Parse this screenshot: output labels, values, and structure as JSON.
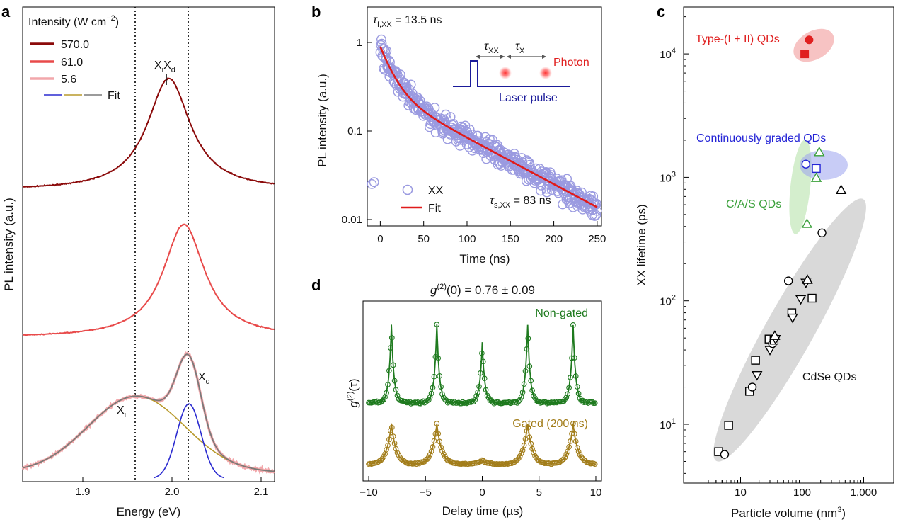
{
  "panels": {
    "a": {
      "label": "a",
      "legend_title": "Intensity (W cm",
      "legend_title_sup": "−2",
      "legend_title_end": ")",
      "legend": [
        "570.0",
        "61.0",
        "5.6",
        "Fit"
      ],
      "peak_label_main": "X",
      "peak_label_sub1": "i",
      "peak_label_mid": "X",
      "peak_label_sub2": "d",
      "xi_main": "X",
      "xi_sub": "i",
      "xd_main": "X",
      "xd_sub": "d",
      "xlabel": "Energy (eV)",
      "ylabel": "PL intensity (a.u.)",
      "xticks": [
        "1.9",
        "2.0",
        "2.1"
      ]
    },
    "b": {
      "label": "b",
      "tau_f_main": "τ",
      "tau_f_sub": "f,XX",
      "tau_f_val": " = 13.5 ns",
      "tau_s_main": "τ",
      "tau_s_sub": "s,XX",
      "tau_s_val": " = 83 ns",
      "inset_tau_xx_main": "τ",
      "inset_tau_xx_sub": "XX",
      "inset_tau_x_main": "τ",
      "inset_tau_x_sub": "X",
      "inset_photon": "Photon",
      "inset_laser": "Laser pulse",
      "legend": [
        "XX",
        "Fit"
      ],
      "xlabel": "Time (ns)",
      "ylabel": "PL intensity (a.u.)",
      "xticks": [
        "0",
        "50",
        "100",
        "150",
        "200",
        "250"
      ],
      "yticks": [
        "1",
        "0.1",
        "0.01"
      ]
    },
    "c": {
      "label": "c",
      "groups": [
        "Type-(I + II) QDs",
        "Continuously graded QDs",
        "C/A/S QDs",
        "CdSe QDs"
      ],
      "xlabel": "Particle volume (nm",
      "xlabel_sup": "3",
      "xlabel_end": ")",
      "ylabel": "XX lifetime (ps)",
      "xticks": [
        "10",
        "100",
        "1,000"
      ],
      "yticks_base": "10",
      "yticks_exp": [
        "1",
        "2",
        "3",
        "4"
      ]
    },
    "d": {
      "label": "d",
      "title_main": "g",
      "title_sup": "(2)",
      "title_end": "(0) = 0.76 ± 0.09",
      "ylabel_main": "g",
      "ylabel_sup": "(2)",
      "ylabel_end": "(τ)",
      "legend": [
        "Non-gated",
        "Gated (200 ns)"
      ],
      "xlabel": "Delay time (µs)",
      "xticks": [
        "−10",
        "−5",
        "0",
        "5",
        "10"
      ]
    }
  },
  "colors": {
    "dark_red": "#8b0a0a",
    "red": "#e84a4a",
    "pink": "#f2a7ab",
    "fit_blue": "#2b2bd0",
    "fit_gold": "#b89a2c",
    "fit_gray": "#7a7a7a",
    "xx_points": "#9a9ae0",
    "fit_red": "#e01b1b",
    "green": "#1e7a1e",
    "gold": "#a27d1a",
    "type_red": "#e02020",
    "graded_blue": "#2424d6",
    "cas_green": "#3aa03a"
  },
  "chart_data": [
    {
      "panel": "a",
      "type": "line",
      "xlabel": "Energy (eV)",
      "ylabel": "PL intensity (a.u.)",
      "xlim": [
        1.85,
        2.1
      ],
      "series": [
        {
          "name": "570.0",
          "peak_eV": 1.995
        },
        {
          "name": "61.0",
          "peak_eV": 2.01
        },
        {
          "name": "5.6",
          "peak_eV": 2.015
        },
        {
          "name": "Fit"
        }
      ],
      "reference_lines_eV": [
        1.963,
        2.015
      ]
    },
    {
      "panel": "b",
      "type": "scatter",
      "xlabel": "Time (ns)",
      "ylabel": "PL intensity (a.u.)",
      "xlim": [
        -15,
        255
      ],
      "ylim": [
        0.007,
        1.6
      ],
      "yscale": "log",
      "series": [
        {
          "name": "XX"
        },
        {
          "name": "Fit",
          "tau_fast_ns": 13.5,
          "tau_slow_ns": 83
        }
      ]
    },
    {
      "panel": "c",
      "type": "scatter",
      "xlabel": "Particle volume (nm3)",
      "ylabel": "XX lifetime (ps)",
      "xscale": "log",
      "yscale": "log",
      "xlim": [
        2.5,
        1300
      ],
      "ylim": [
        3.5,
        30000
      ],
      "series": [
        {
          "name": "Type-(I + II) QDs",
          "points": [
            [
              110,
              10000,
              "square"
            ],
            [
              130,
              13000,
              "circle"
            ]
          ]
        },
        {
          "name": "Continuously graded QDs",
          "points": [
            [
              115,
              1280,
              "circle"
            ],
            [
              170,
              1180,
              "square"
            ]
          ]
        },
        {
          "name": "C/A/S QDs",
          "points": [
            [
              190,
              1600,
              "triangle"
            ],
            [
              170,
              990,
              "triangle"
            ],
            [
              120,
              420,
              "triangle"
            ]
          ]
        },
        {
          "name": "CdSe QDs",
          "points": [
            [
              4.4,
              6,
              "square"
            ],
            [
              5.5,
              5.7,
              "circle"
            ],
            [
              6.4,
              9.8,
              "square"
            ],
            [
              14,
              18.5,
              "square"
            ],
            [
              15.5,
              20,
              "circle"
            ],
            [
              17.5,
              33,
              "square"
            ],
            [
              18.5,
              25,
              "triangle-down"
            ],
            [
              29,
              49,
              "square"
            ],
            [
              30,
              40,
              "triangle-down"
            ],
            [
              33,
              45,
              "circle"
            ],
            [
              35,
              48,
              "square"
            ],
            [
              37,
              49,
              "triangle-down"
            ],
            [
              36,
              52,
              "triangle"
            ],
            [
              60,
              145,
              "circle"
            ],
            [
              68,
              80,
              "square"
            ],
            [
              70,
              73,
              "triangle-down"
            ],
            [
              95,
              103,
              "triangle-down"
            ],
            [
              115,
              140,
              "triangle-down"
            ],
            [
              122,
              148,
              "triangle"
            ],
            [
              145,
              105,
              "square"
            ],
            [
              210,
              355,
              "circle"
            ],
            [
              430,
              790,
              "triangle"
            ]
          ]
        }
      ]
    },
    {
      "panel": "d",
      "type": "line",
      "xlabel": "Delay time (µs)",
      "ylabel": "g(2)(τ)",
      "xlim": [
        -10.5,
        10.5
      ],
      "g2_zero": 0.76,
      "g2_zero_err": 0.09,
      "peak_positions_us": [
        -8,
        -4,
        0,
        4,
        8
      ],
      "series": [
        {
          "name": "Non-gated"
        },
        {
          "name": "Gated (200 ns)"
        }
      ]
    }
  ]
}
